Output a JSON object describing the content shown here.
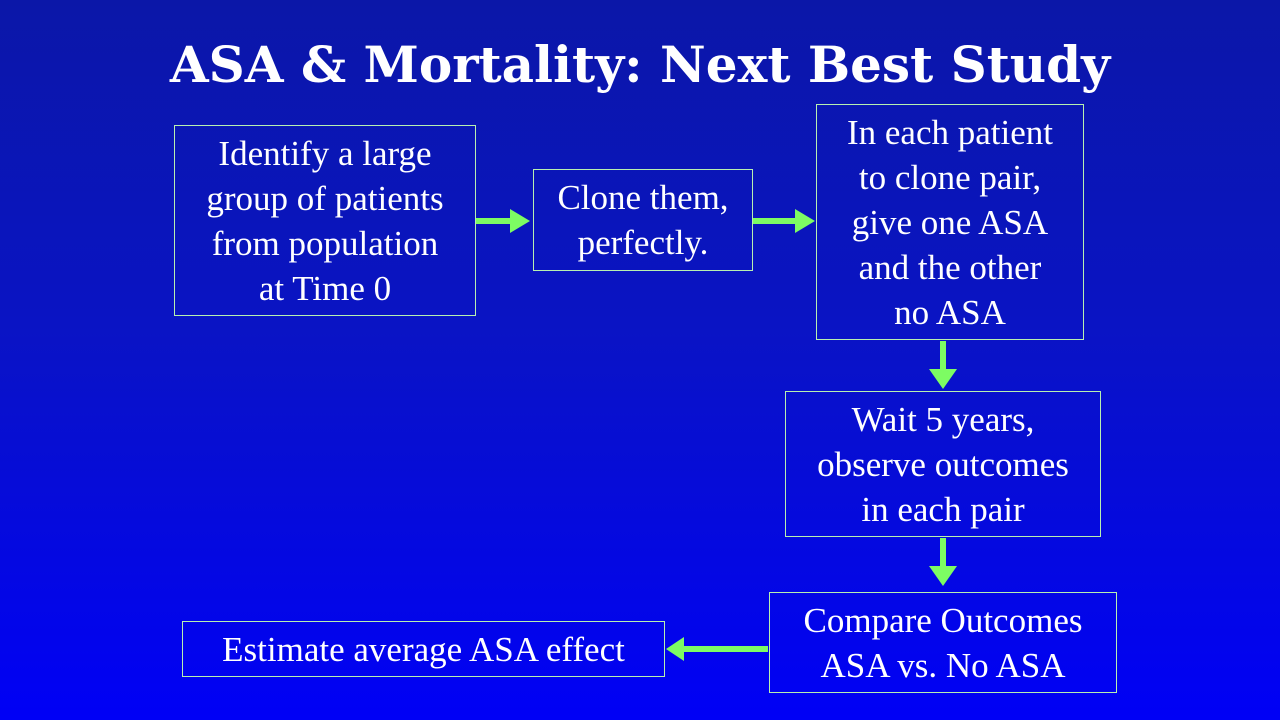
{
  "slide": {
    "title": "ASA & Mortality: Next Best Study"
  },
  "flowchart": {
    "boxes": {
      "identify": "Identify a large\ngroup of patients\nfrom population\nat Time 0",
      "clone": "Clone them,\nperfectly.",
      "assign": "In each patient\nto clone pair,\ngive one ASA\nand the other\nno ASA",
      "wait": "Wait 5 years,\nobserve outcomes\nin each pair",
      "compare": "Compare Outcomes\nASA vs. No ASA",
      "estimate": "Estimate average ASA effect"
    },
    "colors": {
      "arrow": "#7dfc63",
      "border": "#b8f0b0",
      "text": "#ffffff"
    }
  }
}
